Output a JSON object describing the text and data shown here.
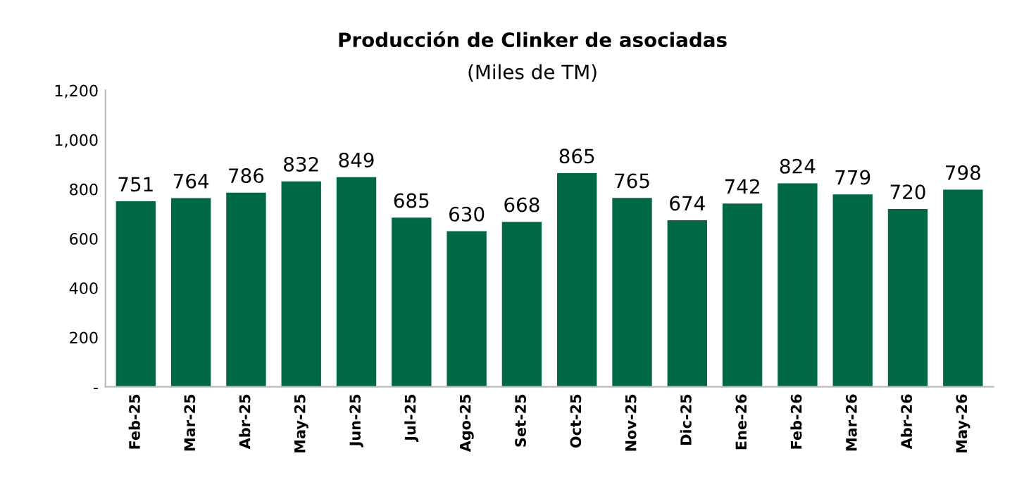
{
  "chart_data": {
    "type": "bar",
    "title": "Producción de Clinker de asociadas",
    "subtitle": "(Miles de TM)",
    "categories": [
      "Feb-25",
      "Mar-25",
      "Abr-25",
      "May-25",
      "Jun-25",
      "Jul-25",
      "Ago-25",
      "Set-25",
      "Oct-25",
      "Nov-25",
      "Dic-25",
      "Ene-26",
      "Feb-26",
      "Mar-26",
      "Abr-26",
      "May-26"
    ],
    "values": [
      751,
      764,
      786,
      832,
      849,
      685,
      630,
      668,
      865,
      765,
      674,
      742,
      824,
      779,
      720,
      798
    ],
    "color": "#006747",
    "data_labels": true,
    "grid": false,
    "legend": false,
    "ylim": [
      0,
      1200
    ],
    "yticks": [
      {
        "value": 0,
        "label": "-"
      },
      200,
      400,
      600,
      800,
      {
        "value": 1000,
        "label": "1,000"
      },
      {
        "value": 1200,
        "label": "1,200"
      }
    ]
  }
}
